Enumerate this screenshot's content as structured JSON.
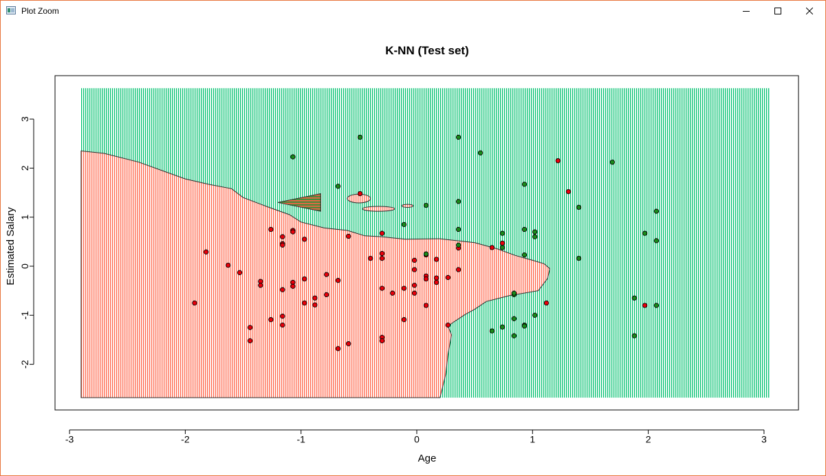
{
  "window": {
    "title": "Plot Zoom",
    "icon": "plot-window-icon",
    "controls": {
      "minimize": "minimize-icon",
      "maximize": "maximize-icon",
      "close": "close-icon"
    }
  },
  "colors": {
    "region_red": "#ff6347",
    "region_green": "#00c06e",
    "point_red": "#e8000b",
    "point_green": "#1a8a1a",
    "frame_border": "#e8733a"
  },
  "chart_data": {
    "type": "scatter",
    "title": "K-NN (Test set)",
    "xlabel": "Age",
    "ylabel": "Estimated Salary",
    "xlim": [
      -3.1,
      3.2
    ],
    "ylim": [
      -2.9,
      3.9
    ],
    "x_ticks": [
      -3,
      -2,
      -1,
      0,
      1,
      2,
      3
    ],
    "y_ticks": [
      -2,
      -1,
      0,
      1,
      2,
      3
    ],
    "grid_extent": {
      "x": [
        -2.9,
        3.05
      ],
      "y": [
        -2.68,
        3.63
      ]
    },
    "boundary": [
      [
        -2.9,
        2.35
      ],
      [
        -2.7,
        2.3
      ],
      [
        -2.4,
        2.12
      ],
      [
        -2.2,
        1.95
      ],
      [
        -2.0,
        1.78
      ],
      [
        -1.8,
        1.67
      ],
      [
        -1.6,
        1.58
      ],
      [
        -1.5,
        1.4
      ],
      [
        -1.3,
        1.22
      ],
      [
        -1.1,
        1.05
      ],
      [
        -1.0,
        0.9
      ],
      [
        -0.8,
        0.78
      ],
      [
        -0.6,
        0.73
      ],
      [
        -0.45,
        0.62
      ],
      [
        -0.3,
        0.6
      ],
      [
        -0.1,
        0.55
      ],
      [
        0.2,
        0.56
      ],
      [
        0.5,
        0.48
      ],
      [
        0.7,
        0.35
      ],
      [
        0.85,
        0.22
      ],
      [
        1.0,
        0.12
      ],
      [
        1.1,
        0.05
      ],
      [
        1.15,
        -0.05
      ],
      [
        1.13,
        -0.25
      ],
      [
        1.05,
        -0.5
      ],
      [
        0.8,
        -0.6
      ],
      [
        0.6,
        -0.72
      ],
      [
        0.5,
        -0.88
      ],
      [
        0.42,
        -0.98
      ],
      [
        0.33,
        -1.12
      ],
      [
        0.27,
        -1.22
      ],
      [
        0.3,
        -1.4
      ],
      [
        0.27,
        -1.8
      ],
      [
        0.25,
        -2.2
      ],
      [
        0.22,
        -2.5
      ],
      [
        0.2,
        -2.68
      ]
    ],
    "islands_red": [
      {
        "cx": -0.5,
        "cy": 1.38,
        "rx": 0.1,
        "ry": 0.09
      },
      {
        "cx": -0.33,
        "cy": 1.17,
        "rx": 0.14,
        "ry": 0.05
      },
      {
        "cx": -0.08,
        "cy": 1.23,
        "rx": 0.05,
        "ry": 0.03
      }
    ],
    "islands_hatched": [
      {
        "x0": -1.2,
        "x1": -0.83,
        "y0": 1.12,
        "y1": 1.48
      }
    ],
    "series": [
      {
        "name": "0",
        "color": "#e8000b",
        "points": [
          [
            -1.92,
            -0.75
          ],
          [
            -1.82,
            0.29
          ],
          [
            -1.63,
            0.02
          ],
          [
            -1.53,
            -0.13
          ],
          [
            -1.44,
            -1.25
          ],
          [
            -1.44,
            -1.52
          ],
          [
            -1.35,
            -0.31
          ],
          [
            -1.35,
            -0.39
          ],
          [
            -1.26,
            0.75
          ],
          [
            -1.26,
            -1.09
          ],
          [
            -1.16,
            0.6
          ],
          [
            -1.16,
            0.46
          ],
          [
            -1.16,
            0.43
          ],
          [
            -1.16,
            -0.48
          ],
          [
            -1.16,
            -1.02
          ],
          [
            -1.16,
            -1.2
          ],
          [
            -1.07,
            0.73
          ],
          [
            -1.07,
            0.7
          ],
          [
            -1.07,
            -0.33
          ],
          [
            -1.07,
            -0.41
          ],
          [
            -0.97,
            0.55
          ],
          [
            -0.97,
            -0.26
          ],
          [
            -0.97,
            -0.75
          ],
          [
            -0.88,
            -0.65
          ],
          [
            -0.88,
            -0.79
          ],
          [
            -0.78,
            -0.17
          ],
          [
            -0.78,
            -0.58
          ],
          [
            -0.68,
            -0.29
          ],
          [
            -0.68,
            -1.68
          ],
          [
            -0.59,
            0.61
          ],
          [
            -0.59,
            -1.58
          ],
          [
            -0.49,
            1.48
          ],
          [
            -0.4,
            0.16
          ],
          [
            -0.3,
            0.67
          ],
          [
            -0.3,
            0.26
          ],
          [
            -0.3,
            0.16
          ],
          [
            -0.3,
            -0.45
          ],
          [
            -0.3,
            -1.45
          ],
          [
            -0.3,
            -1.52
          ],
          [
            -0.21,
            -0.55
          ],
          [
            -0.11,
            -0.45
          ],
          [
            -0.11,
            -1.09
          ],
          [
            -0.02,
            0.12
          ],
          [
            -0.02,
            -0.07
          ],
          [
            -0.02,
            -0.39
          ],
          [
            -0.02,
            -0.55
          ],
          [
            0.08,
            0.23
          ],
          [
            0.08,
            -0.2
          ],
          [
            0.08,
            -0.26
          ],
          [
            0.08,
            -0.8
          ],
          [
            0.17,
            0.14
          ],
          [
            0.17,
            -0.24
          ],
          [
            0.17,
            -0.33
          ],
          [
            0.27,
            -0.23
          ],
          [
            0.27,
            -1.2
          ],
          [
            0.36,
            0.37
          ],
          [
            0.36,
            -0.07
          ],
          [
            0.65,
            0.38
          ],
          [
            0.74,
            0.47
          ],
          [
            1.12,
            -0.75
          ],
          [
            1.22,
            2.15
          ],
          [
            1.31,
            1.52
          ],
          [
            1.97,
            -0.8
          ]
        ]
      },
      {
        "name": "1",
        "color": "#1a8a1a",
        "points": [
          [
            -1.07,
            2.23
          ],
          [
            -0.68,
            1.63
          ],
          [
            -0.49,
            2.63
          ],
          [
            -0.11,
            0.85
          ],
          [
            0.08,
            1.24
          ],
          [
            0.08,
            0.25
          ],
          [
            0.36,
            2.63
          ],
          [
            0.36,
            1.32
          ],
          [
            0.36,
            0.75
          ],
          [
            0.36,
            0.43
          ],
          [
            0.55,
            2.31
          ],
          [
            0.65,
            -1.32
          ],
          [
            0.74,
            0.67
          ],
          [
            0.74,
            0.38
          ],
          [
            0.74,
            -1.24
          ],
          [
            0.84,
            -0.58
          ],
          [
            0.84,
            -0.55
          ],
          [
            0.84,
            -1.07
          ],
          [
            0.84,
            -1.42
          ],
          [
            0.93,
            1.67
          ],
          [
            0.93,
            0.75
          ],
          [
            0.93,
            0.23
          ],
          [
            0.93,
            -1.2
          ],
          [
            0.93,
            -1.22
          ],
          [
            1.02,
            0.7
          ],
          [
            1.02,
            0.6
          ],
          [
            1.02,
            -1.0
          ],
          [
            1.4,
            1.2
          ],
          [
            1.4,
            0.16
          ],
          [
            1.69,
            2.12
          ],
          [
            1.88,
            -0.65
          ],
          [
            1.88,
            -1.42
          ],
          [
            1.97,
            0.67
          ],
          [
            2.07,
            1.12
          ],
          [
            2.07,
            0.52
          ],
          [
            2.07,
            -0.8
          ]
        ]
      }
    ]
  }
}
